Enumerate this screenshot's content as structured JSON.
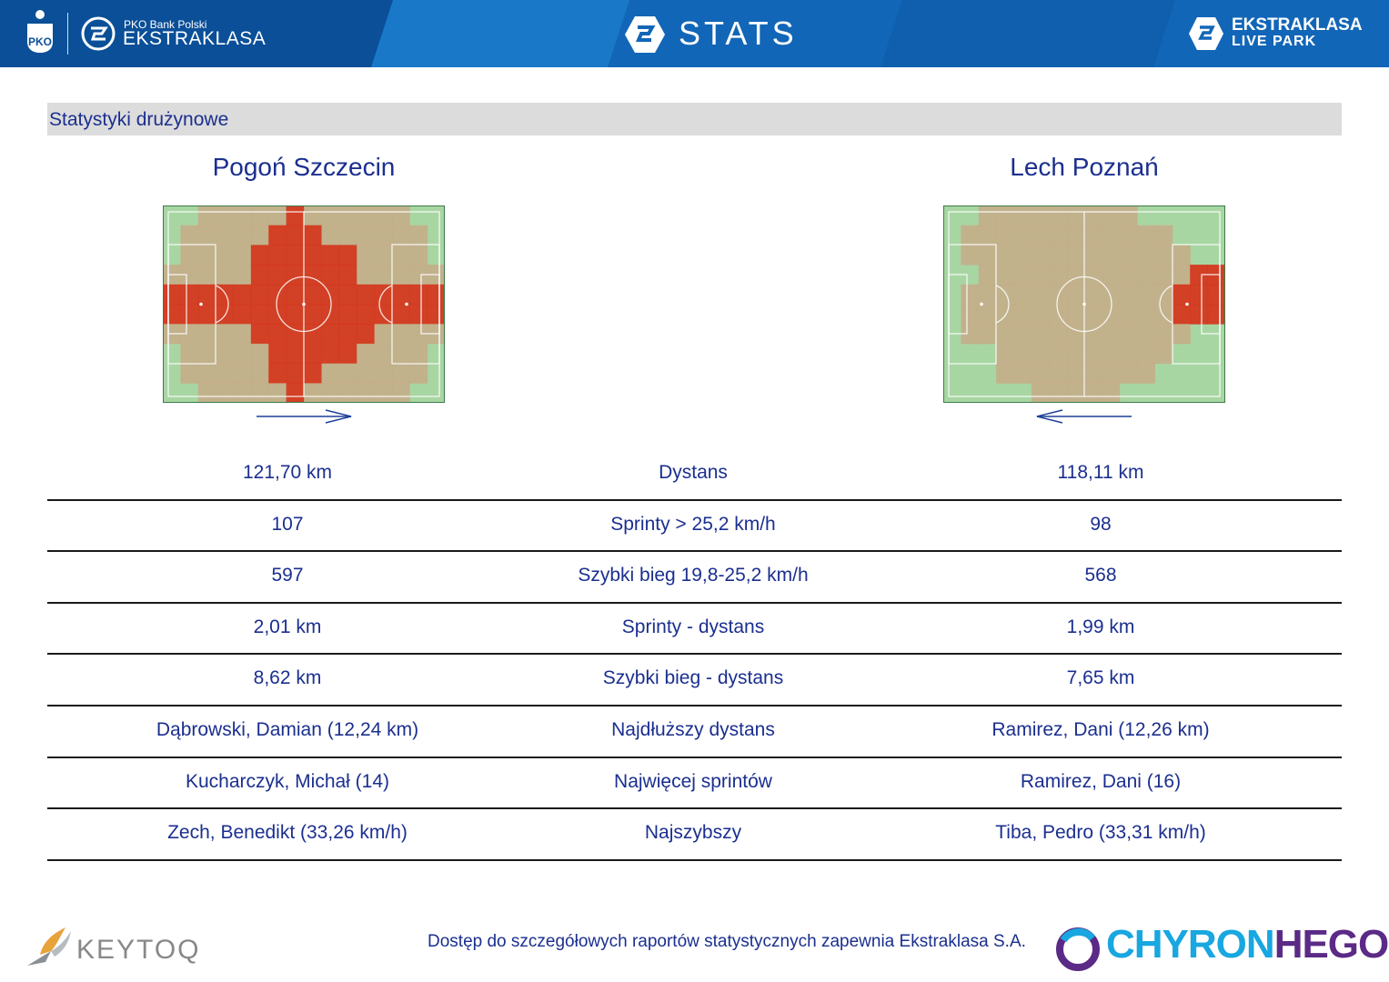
{
  "header": {
    "sponsor_small": "PKO Bank Polski",
    "sponsor_big": "EKSTRAKLASA",
    "title": "STATS",
    "liveparks_top": "EKSTRAKLASA",
    "liveparks_bottom": "LIVE PARK"
  },
  "section": {
    "title": "Statystyki drużynowe"
  },
  "teams": {
    "home": "Pogoń Szczecin",
    "away": "Lech Poznań"
  },
  "heatmap_colors": {
    "low": "#a8d6a3",
    "mid": "#c9a684",
    "high": "#d6331a"
  },
  "stats": [
    {
      "label": "Dystans",
      "home": "121,70 km",
      "away": "118,11 km"
    },
    {
      "label": "Sprinty > 25,2 km/h",
      "home": "107",
      "away": "98"
    },
    {
      "label": "Szybki bieg 19,8-25,2 km/h",
      "home": "597",
      "away": "568"
    },
    {
      "label": "Sprinty - dystans",
      "home": "2,01 km",
      "away": "1,99 km"
    },
    {
      "label": "Szybki bieg - dystans",
      "home": "8,62 km",
      "away": "7,65 km"
    },
    {
      "label": "Najdłuższy dystans",
      "home": "Dąbrowski, Damian (12,24 km)",
      "away": "Ramirez, Dani (12,26 km)"
    },
    {
      "label": "Najwięcej sprintów",
      "home": "Kucharczyk, Michał (14)",
      "away": "Ramirez, Dani (16)"
    },
    {
      "label": "Najszybszy",
      "home": "Zech, Benedikt (33,26 km/h)",
      "away": "Tiba, Pedro (33,31 km/h)"
    }
  ],
  "footer": {
    "keytoq": "KEYTOQ",
    "note": "Dostęp do szczegółowych raportów statystycznych zapewnia Ekstraklasa S.A.",
    "chyron_a": "CHYRON",
    "chyron_b": "HEGO"
  }
}
